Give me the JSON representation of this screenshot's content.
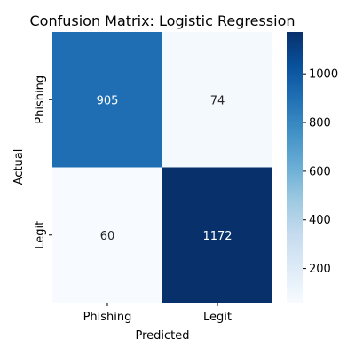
{
  "chart_data": {
    "type": "heatmap",
    "title": "Confusion Matrix: Logistic Regression",
    "xlabel": "Predicted",
    "ylabel": "Actual",
    "x_categories": [
      "Phishing",
      "Legit"
    ],
    "y_categories": [
      "Phishing",
      "Legit"
    ],
    "values": [
      [
        905,
        74
      ],
      [
        60,
        1172
      ]
    ],
    "colormap": "Blues",
    "color_range": [
      60,
      1172
    ],
    "colorbar_ticks": [
      200,
      400,
      600,
      800,
      1000
    ]
  }
}
